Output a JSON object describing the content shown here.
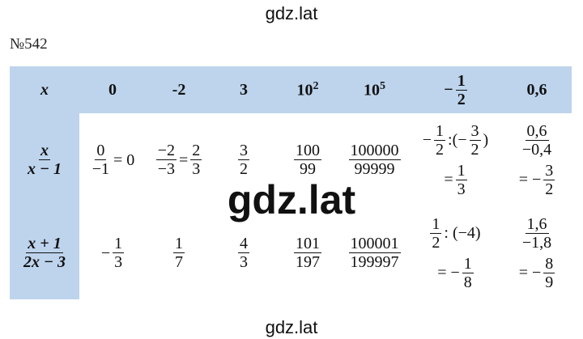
{
  "header": {
    "site": "gdz.lat"
  },
  "problem": "№542",
  "table": {
    "header": [
      [
        [
          "x"
        ]
      ],
      [
        [
          "0"
        ]
      ],
      [
        [
          "-2"
        ]
      ],
      [
        [
          "3"
        ]
      ],
      [
        [
          {
            "base": "10",
            "sup": "2"
          }
        ]
      ],
      [
        [
          {
            "base": "10",
            "sup": "5"
          }
        ]
      ],
      [
        [
          "−",
          {
            "num": "1",
            "den": "2"
          }
        ]
      ],
      [
        [
          "0,6"
        ]
      ]
    ],
    "rows": [
      [
        [
          [
            {
              "num": "x",
              "den": "x − 1"
            }
          ]
        ],
        [
          [
            {
              "num": "0",
              "den": "−1"
            },
            "= 0"
          ]
        ],
        [
          [
            {
              "num": "−2",
              "den": "−3"
            },
            "=",
            {
              "num": "2",
              "den": "3"
            }
          ]
        ],
        [
          [
            {
              "num": "3",
              "den": "2"
            }
          ]
        ],
        [
          [
            {
              "num": "100",
              "den": "99"
            }
          ]
        ],
        [
          [
            {
              "num": "100000",
              "den": "99999"
            }
          ]
        ],
        [
          [
            "−",
            {
              "num": "1",
              "den": "2"
            },
            ":(−",
            {
              "num": "3",
              "den": "2"
            },
            ")"
          ],
          [
            "=",
            {
              "num": "1",
              "den": "3"
            }
          ]
        ],
        [
          [
            {
              "num": "0,6",
              "den": "−0,4"
            }
          ],
          [
            "= −",
            {
              "num": "3",
              "den": "2"
            }
          ]
        ]
      ],
      [
        [
          [
            {
              "num": "x + 1",
              "den": "2x − 3"
            }
          ]
        ],
        [
          [
            "−",
            {
              "num": "1",
              "den": "3"
            }
          ]
        ],
        [
          [
            {
              "num": "1",
              "den": "7"
            }
          ]
        ],
        [
          [
            {
              "num": "4",
              "den": "3"
            }
          ]
        ],
        [
          [
            {
              "num": "101",
              "den": "197"
            }
          ]
        ],
        [
          [
            {
              "num": "100001",
              "den": "199997"
            }
          ]
        ],
        [
          [
            {
              "num": "1",
              "den": "2"
            },
            ": (−4)"
          ],
          [
            "= −",
            {
              "num": "1",
              "den": "8"
            }
          ]
        ],
        [
          [
            {
              "num": "1,6",
              "den": "−1,8"
            }
          ],
          [
            "= −",
            {
              "num": "8",
              "den": "9"
            }
          ]
        ]
      ]
    ]
  },
  "watermark": "gdz.lat",
  "footer": {
    "site": "gdz.lat"
  }
}
